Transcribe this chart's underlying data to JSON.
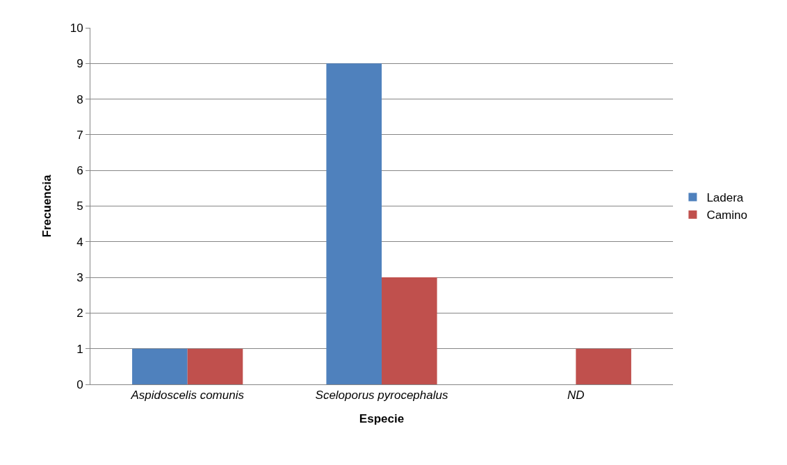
{
  "chart_data": {
    "type": "bar",
    "xlabel": "Especie",
    "ylabel": "Frecuencia",
    "categories": [
      "Aspidoscelis comunis",
      "Sceloporus pyrocephalus",
      "ND"
    ],
    "series": [
      {
        "name": "Ladera",
        "color": "#4f81bd",
        "values": [
          1,
          9,
          0
        ]
      },
      {
        "name": "Camino",
        "color": "#c0504d",
        "values": [
          1,
          3,
          1
        ]
      }
    ],
    "ylim": [
      0,
      10
    ],
    "yticks": [
      0,
      1,
      2,
      3,
      4,
      5,
      6,
      7,
      8,
      9,
      10
    ],
    "grid": "y",
    "legend": "right"
  }
}
